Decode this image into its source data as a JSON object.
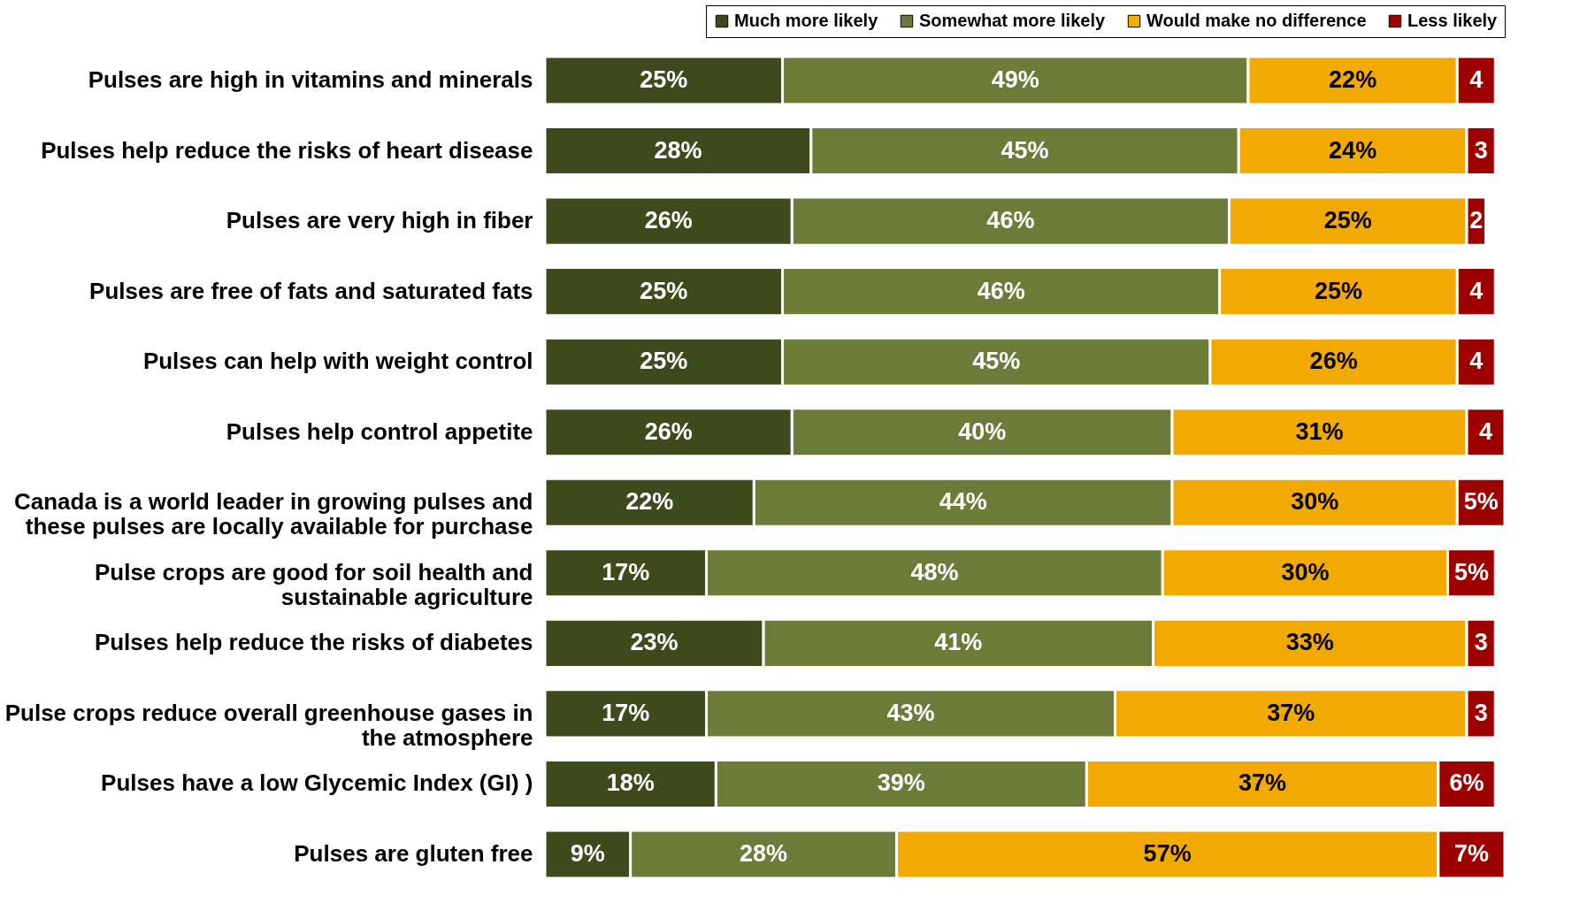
{
  "chart_data": {
    "type": "bar",
    "orientation": "horizontal",
    "stacked": true,
    "legend": "top right",
    "categories": [
      "Pulses are high in vitamins and minerals",
      "Pulses help reduce the risks of heart disease",
      "Pulses are very high in fiber",
      "Pulses are free of fats and saturated fats",
      "Pulses can help with weight control",
      "Pulses help control appetite",
      "Canada is a world leader in growing pulses and these pulses are locally available for purchase",
      "Pulse crops are good for soil health and sustainable agriculture",
      "Pulses help reduce the risks of diabetes",
      "Pulse crops reduce overall greenhouse gases in the atmosphere",
      "Pulses have a low Glycemic Index (GI) )",
      "Pulses are gluten free"
    ],
    "series": [
      {
        "name": "Much more likely",
        "color": "#3d4a1c",
        "values": [
          25,
          28,
          26,
          25,
          25,
          26,
          22,
          17,
          23,
          17,
          18,
          9
        ],
        "value_labels": [
          "25%",
          "28%",
          "26%",
          "25%",
          "25%",
          "26%",
          "22%",
          "17%",
          "23%",
          "17%",
          "18%",
          "9%"
        ]
      },
      {
        "name": "Somewhat more likely",
        "color": "#6b7c38",
        "values": [
          49,
          45,
          46,
          46,
          45,
          40,
          44,
          48,
          41,
          43,
          39,
          28
        ],
        "value_labels": [
          "49%",
          "45%",
          "46%",
          "46%",
          "45%",
          "40%",
          "44%",
          "48%",
          "41%",
          "43%",
          "39%",
          "28%"
        ]
      },
      {
        "name": "Would make no difference",
        "color": "#f2a900",
        "values": [
          22,
          24,
          25,
          25,
          26,
          31,
          30,
          30,
          33,
          37,
          37,
          57
        ],
        "value_labels": [
          "22%",
          "24%",
          "25%",
          "25%",
          "26%",
          "31%",
          "30%",
          "30%",
          "33%",
          "37%",
          "37%",
          "57%"
        ]
      },
      {
        "name": "Less likely",
        "color": "#9e0000",
        "values": [
          4,
          3,
          2,
          4,
          4,
          4,
          5,
          5,
          3,
          3,
          6,
          7
        ],
        "value_labels": [
          "4",
          "3",
          "2",
          "4",
          "4",
          "4",
          "5%",
          "5%",
          "3",
          "3",
          "6%",
          "7%"
        ]
      }
    ]
  }
}
